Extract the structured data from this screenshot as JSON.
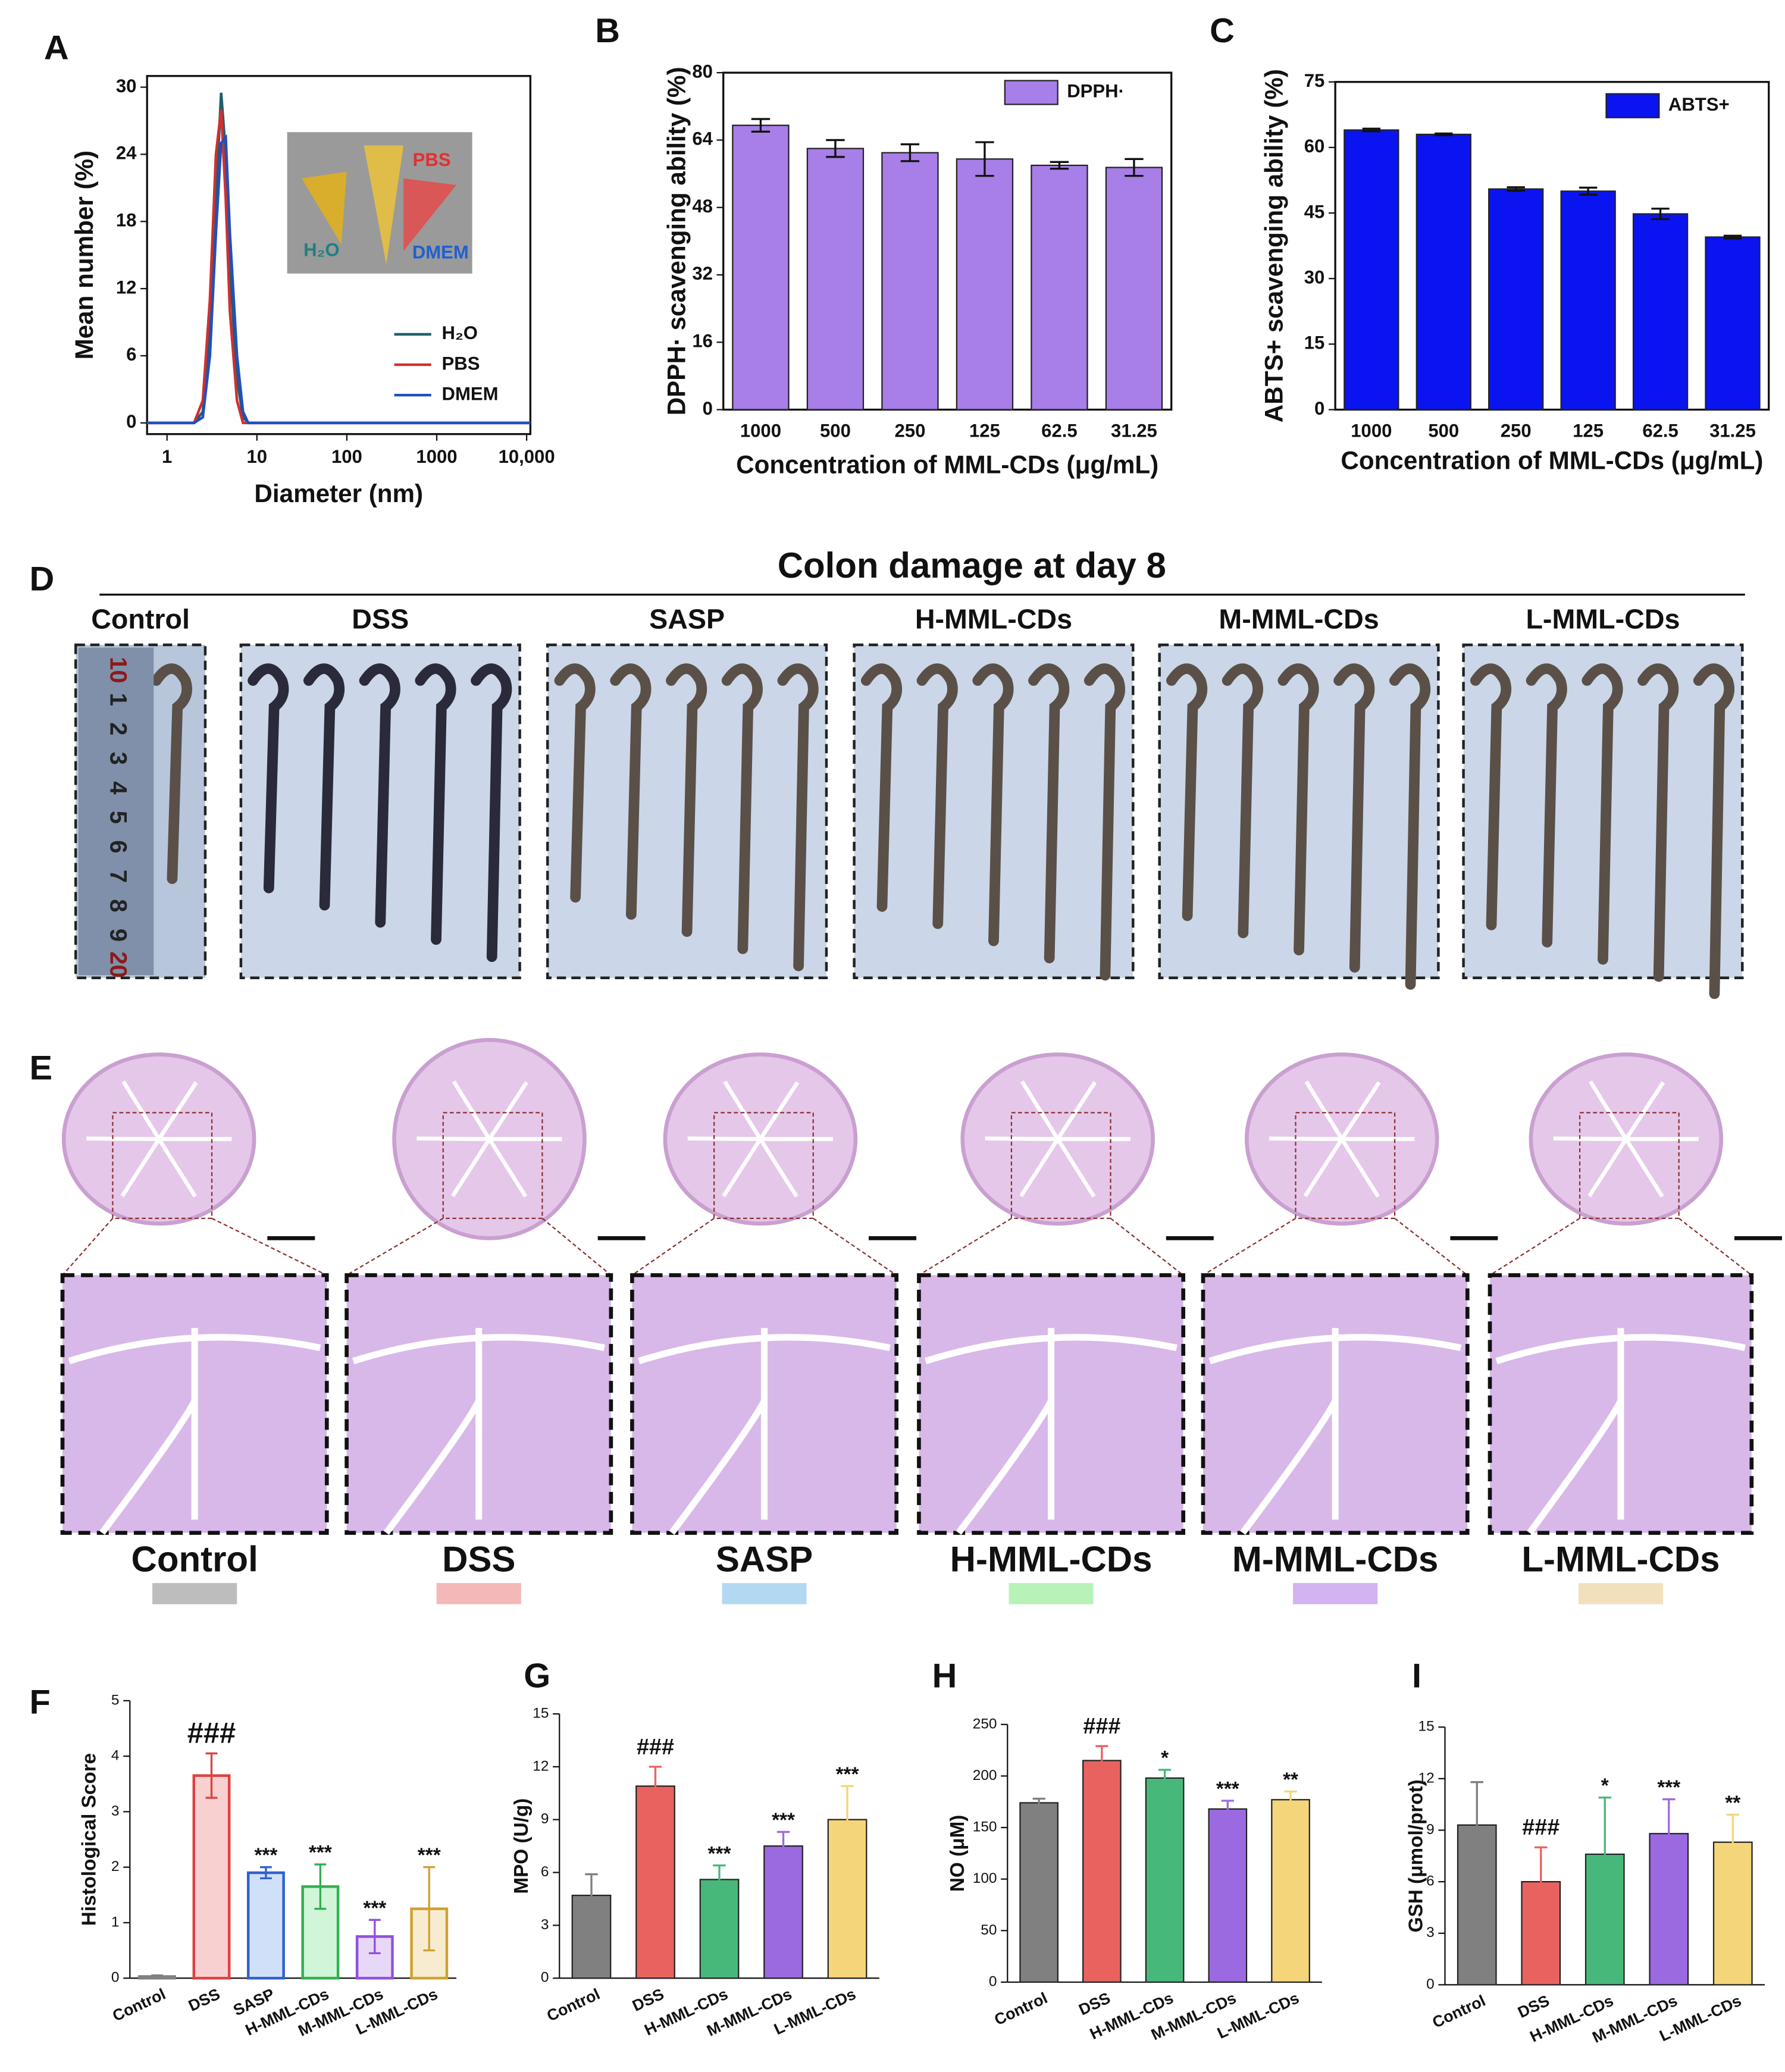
{
  "panel_labels": [
    "A",
    "B",
    "C",
    "D",
    "E",
    "F",
    "G",
    "H",
    "I"
  ],
  "panel_d": {
    "title": "Colon damage at day 8",
    "groups": [
      "Control",
      "DSS",
      "SASP",
      "H-MML-CDs",
      "M-MML-CDs",
      "L-MML-CDs"
    ],
    "ruler_labels": [
      "10",
      "1",
      "2",
      "3",
      "4",
      "5",
      "6",
      "7",
      "8",
      "9",
      "20"
    ]
  },
  "panel_e": {
    "groups": [
      "Control",
      "DSS",
      "SASP",
      "H-MML-CDs",
      "M-MML-CDs",
      "L-MML-CDs"
    ],
    "swatch_colors": [
      "#bdbdbd",
      "#f4b8b8",
      "#b3d9f2",
      "#b8f2b8",
      "#d3b3f2",
      "#f2e0bd"
    ]
  },
  "chart_data": [
    {
      "type": "line",
      "xlabel": "Diameter (nm)",
      "ylabel": "Mean number (%)",
      "xscale": "log",
      "x": [
        0.6,
        2,
        2.5,
        3,
        3.5,
        4,
        4.5,
        5,
        6,
        7,
        8,
        10,
        11000
      ],
      "series": [
        {
          "name": "H₂O",
          "color": "#1f5f6f",
          "values": [
            0,
            0,
            1,
            8,
            20,
            29.5,
            24,
            14,
            4,
            0.5,
            0,
            0,
            0
          ]
        },
        {
          "name": "PBS",
          "color": "#d03030",
          "values": [
            0,
            0,
            2,
            11,
            24,
            28,
            20,
            10,
            2,
            0,
            0,
            0,
            0
          ]
        },
        {
          "name": "DMEM",
          "color": "#2050c0",
          "values": [
            0,
            0,
            0.5,
            6,
            17,
            25,
            25.5,
            17,
            6,
            1,
            0,
            0,
            0
          ]
        }
      ],
      "xlim": [
        0.6,
        11000
      ],
      "xticks": [
        1,
        10,
        100,
        1000,
        {
          "value": 10000,
          "label": "10,000"
        }
      ],
      "ylim": [
        -1,
        31
      ],
      "yticks": [
        0,
        6,
        12,
        18,
        24,
        30
      ],
      "inset_labels": [
        "PBS",
        "H₂O",
        "DMEM"
      ],
      "legend": "lower right"
    },
    {
      "type": "bar",
      "xlabel": "Concentration of MML-CDs (μg/mL)",
      "ylabel": "DPPH· scavenging ability (%)",
      "categories": [
        "1000",
        "500",
        "250",
        "125",
        "62.5",
        "31.25"
      ],
      "series": [
        {
          "name": "DPPH·",
          "color": "#a87ee8",
          "values": [
            67.5,
            62,
            61,
            59.5,
            58,
            57.5
          ],
          "errors": [
            1.5,
            2,
            2,
            4,
            0.8,
            2
          ]
        }
      ],
      "ylim": [
        0,
        80
      ],
      "yticks": [
        0,
        16,
        32,
        48,
        64,
        80
      ],
      "legend": "upper right"
    },
    {
      "type": "bar",
      "xlabel": "Concentration of MML-CDs (μg/mL)",
      "ylabel": "ABTS+ scavenging ability (%)",
      "categories": [
        "1000",
        "500",
        "250",
        "125",
        "62.5",
        "31.25"
      ],
      "series": [
        {
          "name": "ABTS+",
          "color": "#0a14f0",
          "values": [
            64,
            63,
            50.5,
            50,
            44.8,
            39.5
          ],
          "errors": [
            0.3,
            0.2,
            0.4,
            0.8,
            1.2,
            0.3
          ]
        }
      ],
      "ylim": [
        0,
        75
      ],
      "yticks": [
        0,
        15,
        30,
        45,
        60,
        75
      ],
      "legend": "upper right"
    },
    {
      "type": "bar",
      "ylabel": "Histological Score",
      "categories": [
        "Control",
        "DSS",
        "SASP",
        "H-MML-CDs",
        "M-MML-CDs",
        "L-MML-CDs"
      ],
      "values": [
        0.03,
        3.65,
        1.9,
        1.65,
        0.75,
        1.25
      ],
      "errors": [
        0.02,
        0.4,
        0.1,
        0.4,
        0.3,
        0.75
      ],
      "annotations": [
        null,
        "###",
        "***",
        "***",
        "***",
        "***"
      ],
      "colors": [
        "#808080",
        "#e04040",
        "#3060d0",
        "#30b050",
        "#9050e0",
        "#d0a030"
      ],
      "fill_colors": [
        "#e8e8e8",
        "#f8d0d0",
        "#d0e0f8",
        "#d0f5d8",
        "#e8d8f8",
        "#f8ecd0"
      ],
      "ylim": [
        0,
        5
      ],
      "yticks": [
        0,
        1,
        2,
        3,
        4,
        5
      ]
    },
    {
      "type": "bar",
      "ylabel": "MPO (U/g)",
      "categories": [
        "Control",
        "DSS",
        "H-MML-CDs",
        "M-MML-CDs",
        "L-MML-CDs"
      ],
      "values": [
        4.7,
        10.9,
        5.6,
        7.5,
        9.0
      ],
      "errors": [
        1.2,
        1.1,
        0.8,
        0.8,
        1.9
      ],
      "annotations": [
        null,
        "###",
        "***",
        "***",
        "***"
      ],
      "colors": [
        "#808080",
        "#e8635f",
        "#48b87a",
        "#9b6ae0",
        "#f5d57a"
      ],
      "ylim": [
        0,
        15
      ],
      "yticks": [
        0,
        3,
        6,
        9,
        12,
        15
      ]
    },
    {
      "type": "bar",
      "ylabel": "NO (μM)",
      "categories": [
        "Control",
        "DSS",
        "H-MML-CDs",
        "M-MML-CDs",
        "L-MML-CDs"
      ],
      "values": [
        174,
        215,
        198,
        168,
        177
      ],
      "errors": [
        4,
        14,
        8,
        8,
        8
      ],
      "annotations": [
        null,
        "###",
        "*",
        "***",
        "**"
      ],
      "colors": [
        "#808080",
        "#e8635f",
        "#48b87a",
        "#9b6ae0",
        "#f5d57a"
      ],
      "ylim": [
        0,
        250
      ],
      "yticks": [
        0,
        50,
        100,
        150,
        200,
        250
      ]
    },
    {
      "type": "bar",
      "ylabel": "GSH (μmol/prot)",
      "categories": [
        "Control",
        "DSS",
        "H-MML-CDs",
        "M-MML-CDs",
        "L-MML-CDs"
      ],
      "values": [
        9.3,
        6.0,
        7.6,
        8.8,
        8.3
      ],
      "errors": [
        2.5,
        2.0,
        3.3,
        2.0,
        1.6
      ],
      "annotations": [
        null,
        "###",
        "*",
        "***",
        "**"
      ],
      "colors": [
        "#808080",
        "#e8635f",
        "#48b87a",
        "#9b6ae0",
        "#f5d57a"
      ],
      "ylim": [
        0,
        15
      ],
      "yticks": [
        0,
        3,
        6,
        9,
        12,
        15
      ]
    }
  ]
}
